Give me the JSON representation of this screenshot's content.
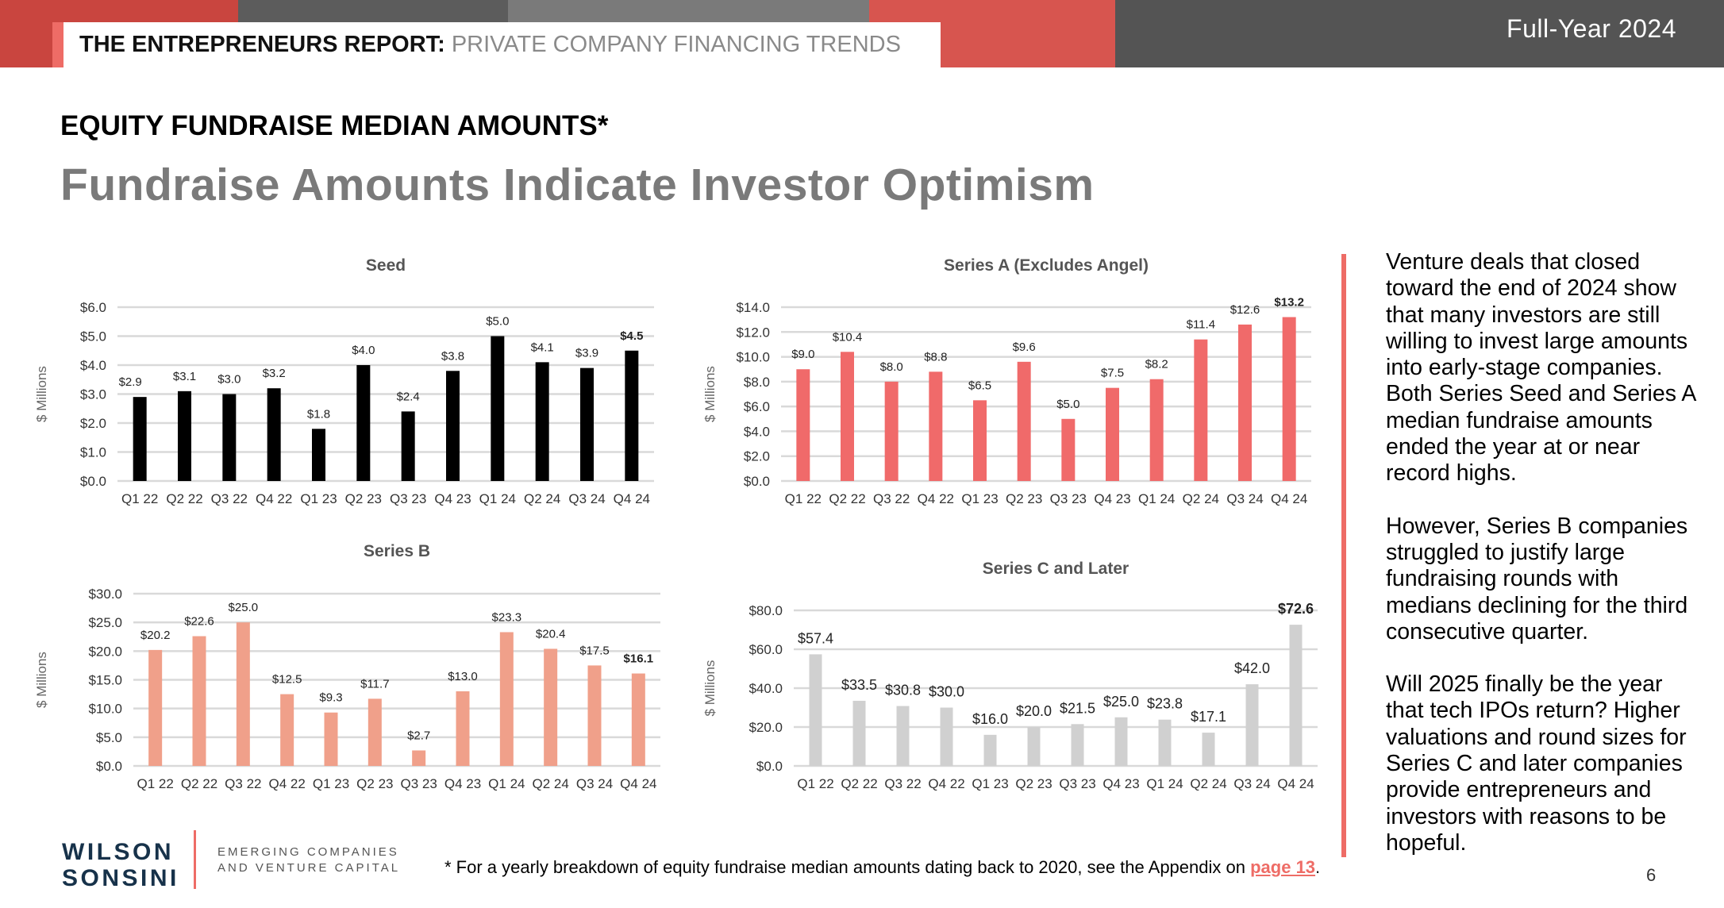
{
  "header": {
    "report_title_bold": "THE ENTREPRENEURS REPORT:",
    "report_title_light": "PRIVATE COMPANY FINANCING TRENDS",
    "period": "Full-Year 2024"
  },
  "section_heading": "EQUITY FUNDRAISE MEDIAN AMOUNTS*",
  "headline": "Fundraise Amounts Indicate Investor Optimism",
  "colors": {
    "accent": "#ee6c66",
    "seed": "#000000",
    "series_a": "#f06a6a",
    "series_b": "#f0a08a",
    "series_c": "#d0d0d0",
    "headline_gray": "#7a7a7a"
  },
  "chart_data": [
    {
      "type": "bar",
      "title": "Seed",
      "ylabel": "$ Millions",
      "categories": [
        "Q1 22",
        "Q2 22",
        "Q3 22",
        "Q4 22",
        "Q1 23",
        "Q2 23",
        "Q3 23",
        "Q4 23",
        "Q1 24",
        "Q2 24",
        "Q3 24",
        "Q4 24"
      ],
      "values": [
        2.9,
        3.1,
        3.0,
        3.2,
        1.8,
        4.0,
        2.4,
        3.8,
        5.0,
        4.1,
        3.9,
        4.5
      ],
      "labels": [
        "$2.9",
        "$3.1",
        "$3.0",
        "$3.2",
        "$1.8",
        "$4.0",
        "$2.4",
        "$3.8",
        "$5.0",
        "$4.1",
        "$3.9",
        "$4.5"
      ],
      "yticks": [
        "$0.0",
        "$1.0",
        "$2.0",
        "$3.0",
        "$4.0",
        "$5.0",
        "$6.0"
      ],
      "ylim": [
        0,
        6
      ],
      "grid": true,
      "color": "#000000"
    },
    {
      "type": "bar",
      "title": "Series A (Excludes Angel)",
      "ylabel": "$ Millions",
      "categories": [
        "Q1 22",
        "Q2 22",
        "Q3 22",
        "Q4 22",
        "Q1 23",
        "Q2 23",
        "Q3 23",
        "Q4 23",
        "Q1 24",
        "Q2 24",
        "Q3 24",
        "Q4 24"
      ],
      "values": [
        9.0,
        10.4,
        8.0,
        8.8,
        6.5,
        9.6,
        5.0,
        7.5,
        8.2,
        11.4,
        12.6,
        13.2
      ],
      "labels": [
        "$9.0",
        "$10.4",
        "$8.0",
        "$8.8",
        "$6.5",
        "$9.6",
        "$5.0",
        "$7.5",
        "$8.2",
        "$11.4",
        "$12.6",
        "$13.2"
      ],
      "yticks": [
        "$0.0",
        "$2.0",
        "$4.0",
        "$6.0",
        "$8.0",
        "$10.0",
        "$12.0",
        "$14.0"
      ],
      "ylim": [
        0,
        14
      ],
      "grid": true,
      "color": "#f06a6a"
    },
    {
      "type": "bar",
      "title": "Series B",
      "ylabel": "$ Millions",
      "categories": [
        "Q1 22",
        "Q2 22",
        "Q3 22",
        "Q4 22",
        "Q1 23",
        "Q2 23",
        "Q3 23",
        "Q4 23",
        "Q1 24",
        "Q2 24",
        "Q3 24",
        "Q4 24"
      ],
      "values": [
        20.2,
        22.6,
        25.0,
        12.5,
        9.3,
        11.7,
        2.7,
        13.0,
        23.3,
        20.4,
        17.5,
        16.1
      ],
      "labels": [
        "$20.2",
        "$22.6",
        "$25.0",
        "$12.5",
        "$9.3",
        "$11.7",
        "$2.7",
        "$13.0",
        "$23.3",
        "$20.4",
        "$17.5",
        "$16.1"
      ],
      "yticks": [
        "$0.0",
        "$5.0",
        "$10.0",
        "$15.0",
        "$20.0",
        "$25.0",
        "$30.0"
      ],
      "ylim": [
        0,
        30
      ],
      "grid": true,
      "color": "#f0a08a"
    },
    {
      "type": "bar",
      "title": "Series C and Later",
      "ylabel": "$ Millions",
      "categories": [
        "Q1 22",
        "Q2 22",
        "Q3 22",
        "Q4 22",
        "Q1 23",
        "Q2 23",
        "Q3 23",
        "Q4 23",
        "Q1 24",
        "Q2 24",
        "Q3 24",
        "Q4 24"
      ],
      "values": [
        57.4,
        33.5,
        30.8,
        30.0,
        16.0,
        20.0,
        21.5,
        25.0,
        23.8,
        17.1,
        42.0,
        72.6
      ],
      "labels": [
        "$57.4",
        "$33.5",
        "$30.8",
        "$30.0",
        "$16.0",
        "$20.0",
        "$21.5",
        "$25.0",
        "$23.8",
        "$17.1",
        "$42.0",
        "$72.6"
      ],
      "yticks": [
        "$0.0",
        "$20.0",
        "$40.0",
        "$60.0",
        "$80.0"
      ],
      "ylim": [
        0,
        80
      ],
      "grid": true,
      "color": "#d0d0d0"
    }
  ],
  "commentary": {
    "p1": "Venture deals that closed toward the end of 2024 show that many investors are still willing to invest large amounts into early-stage companies. Both Series Seed and Series A median fundraise amounts ended the year at or near record highs.",
    "p2": "However, Series B companies struggled to justify large fundraising rounds with medians declining for the third consecutive quarter.",
    "p3": "Will 2025 finally be the year that tech IPOs return? Higher valuations and round sizes for Series C and later companies provide entrepreneurs and investors with reasons to be hopeful."
  },
  "footnote": {
    "text": "* For a yearly breakdown of equity fundraise median amounts dating back to 2020, see the Appendix on",
    "link": "page 13",
    "end": "."
  },
  "logo": {
    "line1": "WILSON",
    "line2": "SONSINI",
    "tagline1": "EMERGING COMPANIES",
    "tagline2": "AND VENTURE CAPITAL"
  },
  "page_number": "6"
}
